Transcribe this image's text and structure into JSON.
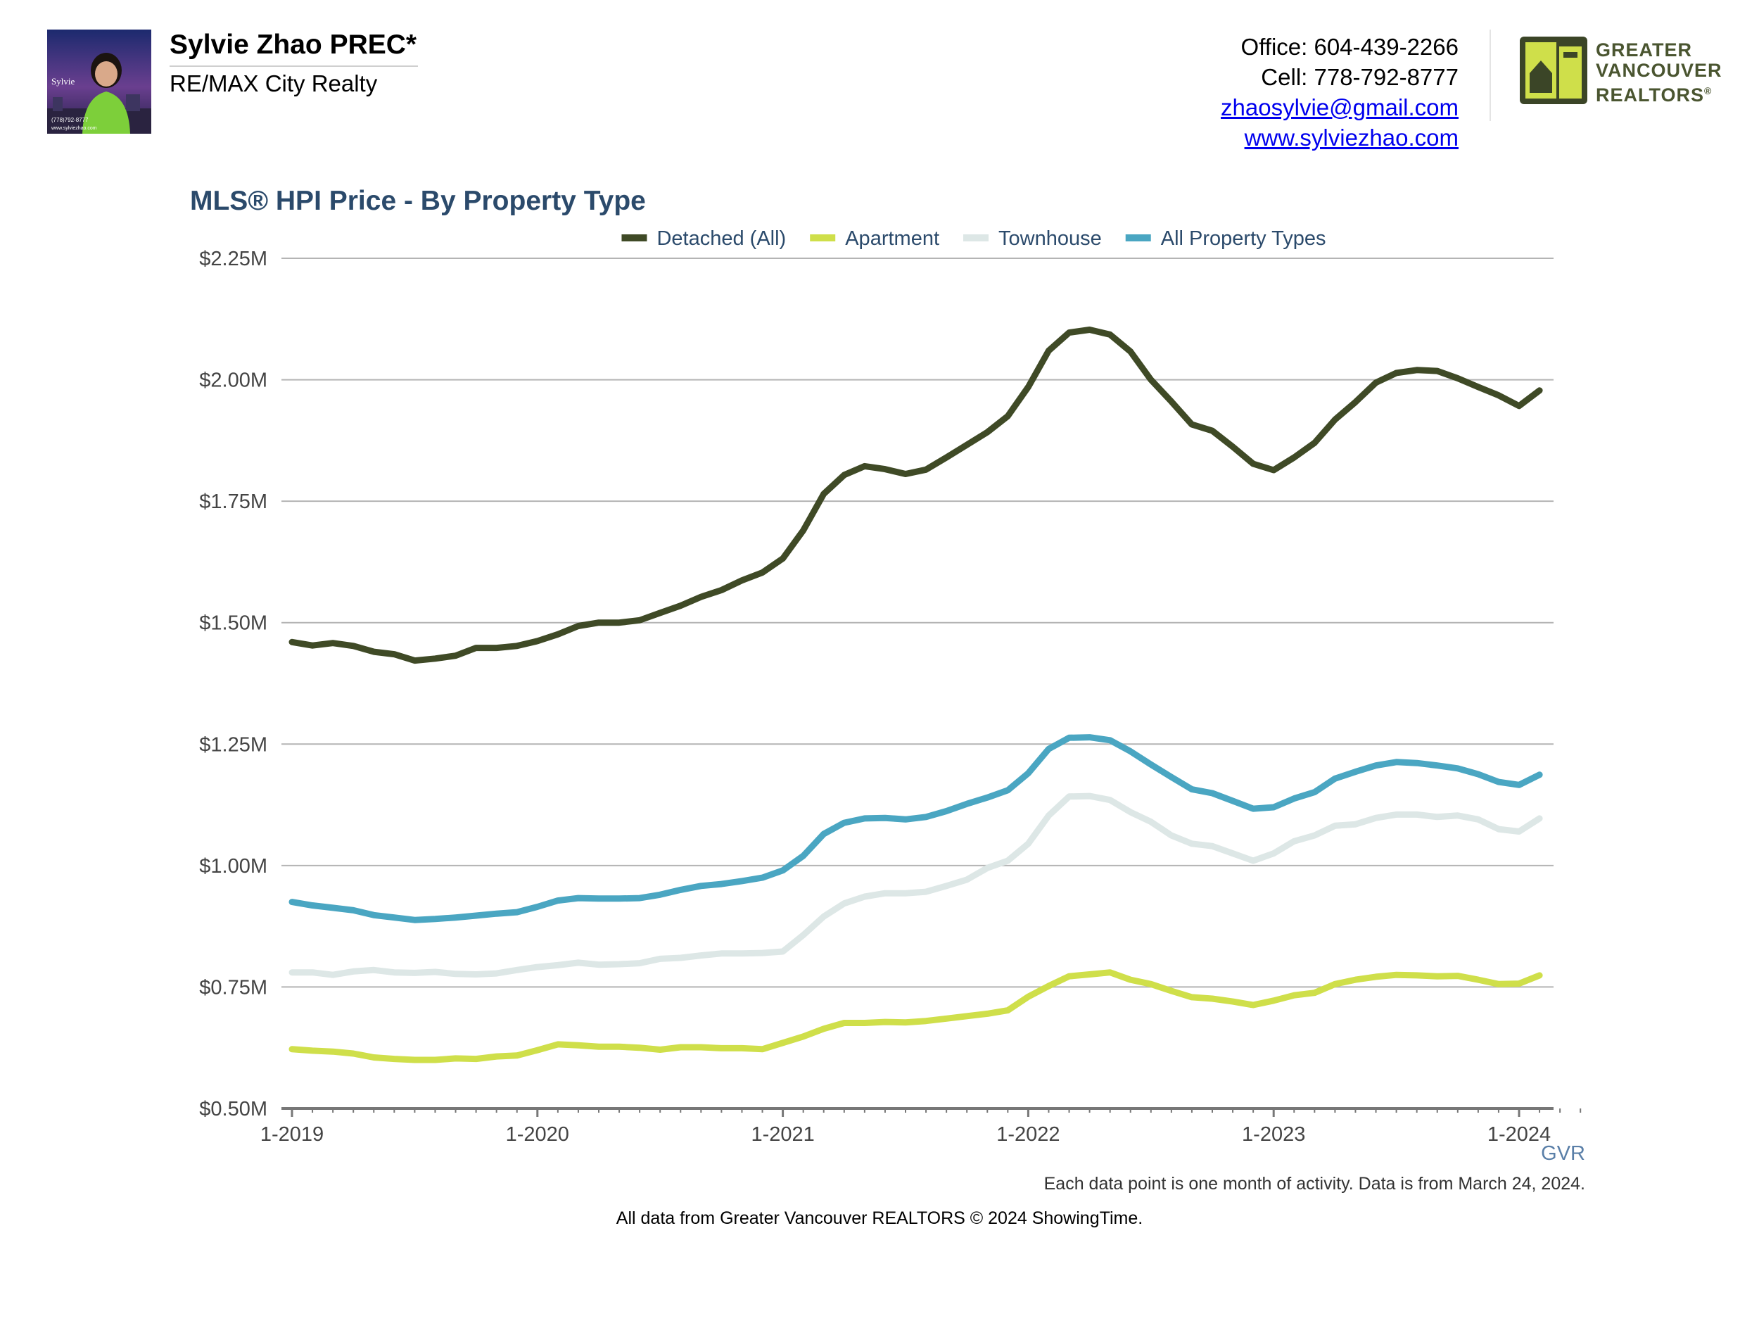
{
  "header": {
    "agent_name": "Sylvie Zhao PREC*",
    "company": "RE/MAX City Realty",
    "office": "Office: 604-439-2266",
    "cell": "Cell: 778-792-8777",
    "email": "zhaosylvie@gmail.com",
    "website": "www.sylviezhao.com",
    "photo_caption_name": "Sylvie",
    "photo_caption_phone": "(778)792-8777",
    "photo_caption_site": "www.sylviezhao.com",
    "logo_line1": "GREATER",
    "logo_line2": "VANCOUVER",
    "logo_line3": "REALTORS",
    "logo_mark": "®"
  },
  "footer": {
    "credit": "All data from Greater Vancouver REALTORS © 2024 ShowingTime."
  },
  "colors": {
    "detached": "#3f4a26",
    "apartment": "#cfdf4a",
    "townhouse": "#dde7e6",
    "all": "#4aa6c2",
    "title": "#2b4a6b",
    "grid": "#b4b4b4",
    "axis": "#777777"
  },
  "chart_data": {
    "type": "line",
    "title": "MLS® HPI Price - By Property Type",
    "source_label": "GVR",
    "note": "Each data point is one month of activity. Data is from March 24, 2024.",
    "xlabel": "",
    "ylabel": "",
    "ylim": [
      0.5,
      2.25
    ],
    "y_ticks": [
      0.5,
      0.75,
      1.0,
      1.25,
      1.5,
      1.75,
      2.0,
      2.25
    ],
    "y_tick_labels": [
      "$0.50M",
      "$0.75M",
      "$1.00M",
      "$1.25M",
      "$1.50M",
      "$1.75M",
      "$2.00M",
      "$2.25M"
    ],
    "x_tick_labels": [
      "1-2019",
      "1-2020",
      "1-2021",
      "1-2022",
      "1-2023",
      "1-2024"
    ],
    "x_tick_months": [
      0,
      12,
      24,
      36,
      48,
      60
    ],
    "x_months_total": 63,
    "grid": true,
    "legend_position": "top-center",
    "series": [
      {
        "name": "Detached (All)",
        "color_key": "detached",
        "values": [
          1.46,
          1.453,
          1.458,
          1.452,
          1.44,
          1.435,
          1.422,
          1.426,
          1.432,
          1.448,
          1.448,
          1.452,
          1.462,
          1.476,
          1.493,
          1.5,
          1.5,
          1.505,
          1.52,
          1.535,
          1.553,
          1.567,
          1.587,
          1.603,
          1.632,
          1.69,
          1.765,
          1.804,
          1.822,
          1.816,
          1.806,
          1.815,
          1.84,
          1.866,
          1.892,
          1.925,
          1.985,
          2.06,
          2.097,
          2.103,
          2.093,
          2.058,
          2.0,
          1.955,
          1.908,
          1.895,
          1.862,
          1.827,
          1.814,
          1.84,
          1.87,
          1.918,
          1.954,
          1.994,
          2.014,
          2.02,
          2.018,
          2.003,
          1.985,
          1.968,
          1.946,
          1.978
        ]
      },
      {
        "name": "Apartment",
        "color_key": "apartment",
        "values": [
          0.622,
          0.619,
          0.617,
          0.613,
          0.605,
          0.602,
          0.6,
          0.6,
          0.603,
          0.602,
          0.607,
          0.609,
          0.62,
          0.632,
          0.63,
          0.627,
          0.627,
          0.625,
          0.621,
          0.626,
          0.626,
          0.624,
          0.624,
          0.622,
          0.635,
          0.648,
          0.664,
          0.676,
          0.676,
          0.678,
          0.677,
          0.68,
          0.685,
          0.69,
          0.695,
          0.702,
          0.73,
          0.752,
          0.772,
          0.776,
          0.78,
          0.765,
          0.756,
          0.742,
          0.729,
          0.726,
          0.72,
          0.713,
          0.722,
          0.733,
          0.738,
          0.756,
          0.765,
          0.771,
          0.775,
          0.774,
          0.772,
          0.773,
          0.765,
          0.756,
          0.757,
          0.774
        ]
      },
      {
        "name": "Townhouse",
        "color_key": "townhouse",
        "values": [
          0.78,
          0.78,
          0.775,
          0.782,
          0.785,
          0.78,
          0.779,
          0.781,
          0.777,
          0.776,
          0.778,
          0.785,
          0.791,
          0.795,
          0.8,
          0.796,
          0.797,
          0.799,
          0.808,
          0.81,
          0.815,
          0.819,
          0.819,
          0.82,
          0.823,
          0.857,
          0.895,
          0.922,
          0.936,
          0.943,
          0.943,
          0.946,
          0.958,
          0.971,
          0.995,
          1.01,
          1.045,
          1.103,
          1.142,
          1.143,
          1.135,
          1.11,
          1.09,
          1.062,
          1.045,
          1.04,
          1.025,
          1.01,
          1.025,
          1.05,
          1.062,
          1.082,
          1.085,
          1.098,
          1.105,
          1.105,
          1.1,
          1.103,
          1.095,
          1.075,
          1.07,
          1.097
        ]
      },
      {
        "name": "All Property Types",
        "color_key": "all",
        "values": [
          0.925,
          0.918,
          0.913,
          0.908,
          0.898,
          0.893,
          0.888,
          0.89,
          0.893,
          0.897,
          0.901,
          0.904,
          0.915,
          0.928,
          0.933,
          0.932,
          0.932,
          0.933,
          0.94,
          0.95,
          0.958,
          0.962,
          0.968,
          0.975,
          0.99,
          1.02,
          1.065,
          1.088,
          1.097,
          1.098,
          1.095,
          1.1,
          1.112,
          1.127,
          1.14,
          1.155,
          1.19,
          1.24,
          1.263,
          1.264,
          1.258,
          1.235,
          1.208,
          1.182,
          1.157,
          1.149,
          1.133,
          1.117,
          1.12,
          1.138,
          1.151,
          1.179,
          1.193,
          1.206,
          1.213,
          1.211,
          1.206,
          1.2,
          1.188,
          1.172,
          1.166,
          1.187
        ]
      }
    ]
  }
}
